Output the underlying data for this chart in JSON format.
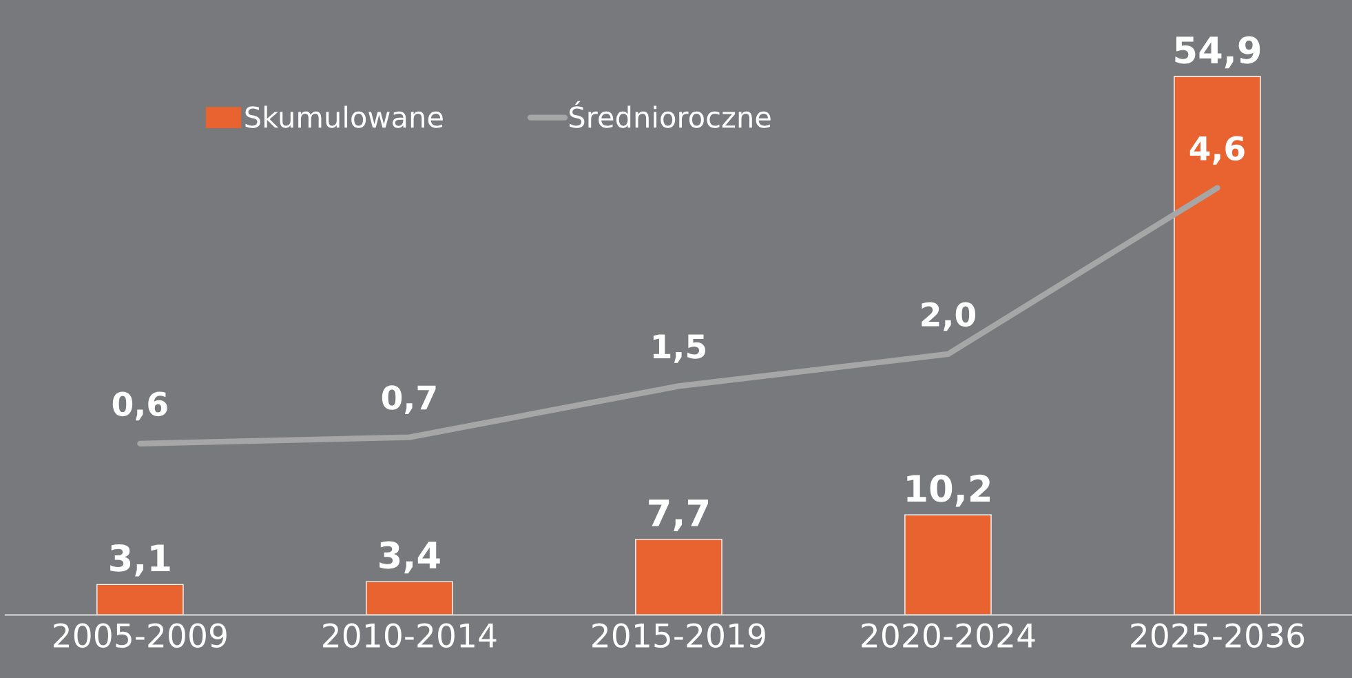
{
  "chart_data": {
    "type": "bar",
    "categories": [
      "2005-2009",
      "2010-2014",
      "2015-2019",
      "2020-2024",
      "2025-2036"
    ],
    "series": [
      {
        "name": "Skumulowane",
        "color": "#e8632f",
        "values": [
          3.1,
          3.4,
          7.7,
          10.2,
          54.9
        ],
        "value_labels": [
          "3,1",
          "3,4",
          "7,7",
          "10,2",
          "54,9"
        ]
      },
      {
        "name": "Średnioroczne",
        "type": "line",
        "axis": "y2",
        "color": "#a6a6a6",
        "values": [
          0.6,
          0.7,
          1.5,
          2.0,
          4.6
        ],
        "value_labels": [
          "0,6",
          "0,7",
          "1,5",
          "2,0",
          "4,6"
        ]
      }
    ],
    "legend": "top left"
  }
}
